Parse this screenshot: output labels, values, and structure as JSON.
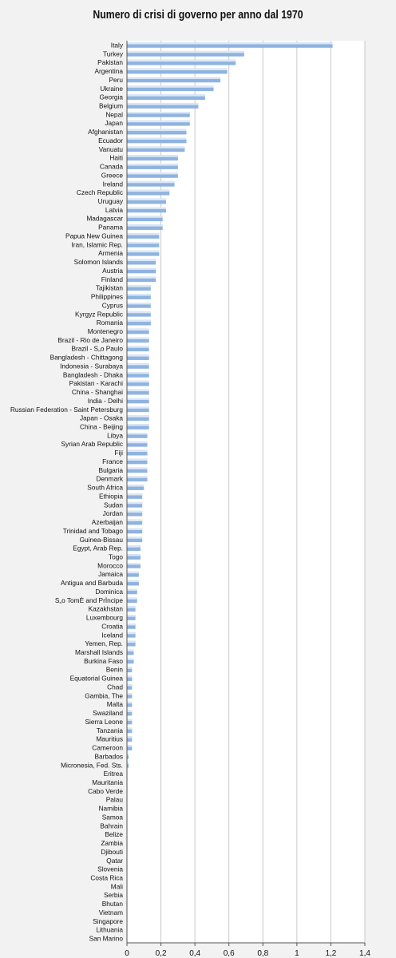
{
  "chart_data": {
    "type": "bar",
    "orientation": "horizontal",
    "title": "Numero di crisi di governo per anno dal 1970",
    "xlabel": "",
    "ylabel": "",
    "xlim": [
      0,
      1.4
    ],
    "x_ticks": [
      0,
      0.2,
      0.4,
      0.6,
      0.8,
      1.0,
      1.2,
      1.4
    ],
    "x_tick_labels": [
      "0",
      "0,2",
      "0,4",
      "0,6",
      "0,8",
      "1",
      "1,2",
      "1,4"
    ],
    "grid": "vertical",
    "bar_color": "#8fb3e0",
    "bar_highlight_color": "#dbe8f7",
    "categories": [
      "Italy",
      "Turkey",
      "Pakistan",
      "Argentina",
      "Peru",
      "Ukraine",
      "Georgia",
      "Belgium",
      "Nepal",
      "Japan",
      "Afghanistan",
      "Ecuador",
      "Vanuatu",
      "Haiti",
      "Canada",
      "Greece",
      "Ireland",
      "Czech Republic",
      "Uruguay",
      "Latvia",
      "Madagascar",
      "Panama",
      "Papua New Guinea",
      "Iran, Islamic Rep.",
      "Armenia",
      "Solomon Islands",
      "Austria",
      "Finland",
      "Tajikistan",
      "Philippines",
      "Cyprus",
      "Kyrgyz Republic",
      "Romania",
      "Montenegro",
      "Brazil - Rio de Janeiro",
      "Brazil - S„o Paulo",
      "Bangladesh - Chittagong",
      "Indonesia - Surabaya",
      "Bangladesh - Dhaka",
      "Pakistan - Karachi",
      "China - Shanghai",
      "India - Delhi",
      "Russian Federation - Saint Petersburg",
      "Japan - Osaka",
      "China - Beijing",
      "Libya",
      "Syrian Arab Republic",
      "Fiji",
      "France",
      "Bulgaria",
      "Denmark",
      "South Africa",
      "Ethiopia",
      "Sudan",
      "Jordan",
      "Azerbaijan",
      "Trinidad and Tobago",
      "Guinea-Bissau",
      "Egypt, Arab Rep.",
      "Togo",
      "Morocco",
      "Jamaica",
      "Antigua and Barbuda",
      "Dominica",
      "S„o TomÈ and PrÌncipe",
      "Kazakhstan",
      "Luxembourg",
      "Croatia",
      "Iceland",
      "Yemen, Rep.",
      "Marshall Islands",
      "Burkina Faso",
      "Benin",
      "Equatorial Guinea",
      "Chad",
      "Gambia, The",
      "Malta",
      "Swaziland",
      "Sierra Leone",
      "Tanzania",
      "Mauritius",
      "Cameroon",
      "Barbados",
      "Micronesia, Fed. Sts.",
      "Eritrea",
      "Mauritania",
      "Cabo Verde",
      "Palau",
      "Namibia",
      "Samoa",
      "Bahrain",
      "Belize",
      "Zambia",
      "Djibouti",
      "Qatar",
      "Slovenia",
      "Costa Rica",
      "Mali",
      "Serbia",
      "Bhutan",
      "Vietnam",
      "Singapore",
      "Lithuania",
      "San Marino"
    ],
    "values": [
      1.21,
      0.69,
      0.64,
      0.59,
      0.55,
      0.51,
      0.46,
      0.42,
      0.37,
      0.37,
      0.35,
      0.35,
      0.34,
      0.3,
      0.3,
      0.3,
      0.28,
      0.25,
      0.23,
      0.23,
      0.21,
      0.21,
      0.19,
      0.19,
      0.19,
      0.17,
      0.17,
      0.17,
      0.14,
      0.14,
      0.14,
      0.14,
      0.14,
      0.13,
      0.13,
      0.13,
      0.13,
      0.13,
      0.13,
      0.13,
      0.13,
      0.13,
      0.13,
      0.13,
      0.13,
      0.12,
      0.12,
      0.12,
      0.12,
      0.12,
      0.12,
      0.1,
      0.09,
      0.09,
      0.09,
      0.09,
      0.09,
      0.09,
      0.08,
      0.08,
      0.08,
      0.07,
      0.07,
      0.06,
      0.06,
      0.05,
      0.05,
      0.05,
      0.05,
      0.05,
      0.04,
      0.04,
      0.03,
      0.03,
      0.03,
      0.03,
      0.03,
      0.03,
      0.03,
      0.03,
      0.03,
      0.03,
      0.01,
      0.01,
      0,
      0,
      0,
      0,
      0,
      0,
      0,
      0,
      0,
      0,
      0,
      0,
      0,
      0,
      0,
      0,
      0,
      0,
      0,
      0
    ]
  }
}
